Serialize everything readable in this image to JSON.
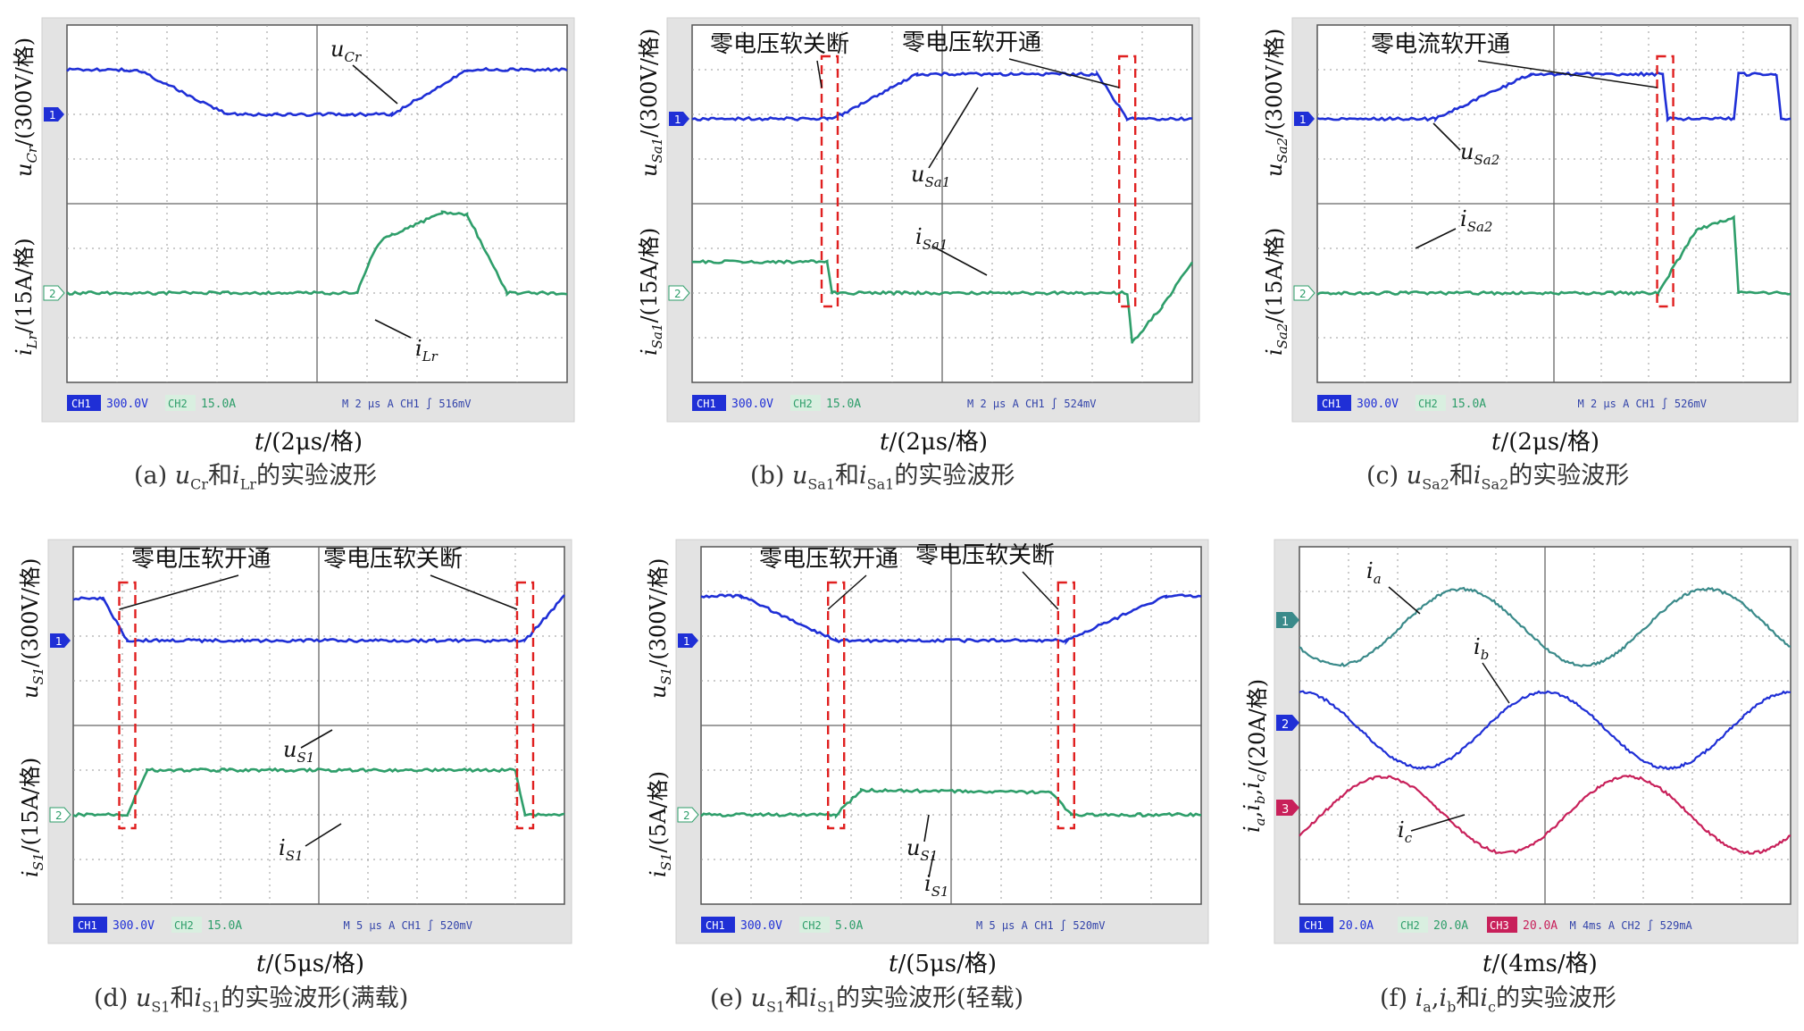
{
  "figure": {
    "captions": [
      {
        "id": "a",
        "label": "(a)",
        "v1": "u",
        "s1": "Cr",
        "mid": "和",
        "v2": "i",
        "s2": "Lr",
        "tail": "的实验波形"
      },
      {
        "id": "b",
        "label": "(b)",
        "v1": "u",
        "s1": "Sa1",
        "mid": "和",
        "v2": "i",
        "s2": "Sa1",
        "tail": "的实验波形"
      },
      {
        "id": "c",
        "label": "(c)",
        "v1": "u",
        "s1": "Sa2",
        "mid": "和",
        "v2": "i",
        "s2": "Sa2",
        "tail": "的实验波形"
      },
      {
        "id": "d",
        "label": "(d)",
        "v1": "u",
        "s1": "S1",
        "mid": "和",
        "v2": "i",
        "s2": "S1",
        "tail": "的实验波形(满载)"
      },
      {
        "id": "e",
        "label": "(e)",
        "v1": "u",
        "s1": "S1",
        "mid": "和",
        "v2": "i",
        "s2": "S1",
        "tail": "的实验波形(轻载)"
      },
      {
        "id": "f",
        "label": "(f)",
        "v1": "i",
        "s1": "a",
        "mid": ",",
        "v2": "i",
        "s2": "b",
        "tail": "和",
        "v3": "i",
        "s3": "c",
        "tail2": "的实验波形"
      }
    ]
  },
  "colors": {
    "ch1": "#1f2fd6",
    "ch2": "#2e9e6a",
    "ch1_panel_f": "#3a8a8a",
    "ch3": "#c8205a",
    "grid": "#9a9a9a",
    "frame": "#cfcfcf",
    "annotation": "#e02020",
    "text": "#111111"
  },
  "chart_data": [
    {
      "id": "a",
      "type": "line",
      "xlabel": "t/(2μs/格)",
      "ylabels": [
        {
          "text": "u",
          "sub": "Cr",
          "unit": "/(300V/格)"
        },
        {
          "text": "i",
          "sub": "Lr",
          "unit": "/(15A/格)"
        }
      ],
      "series": [
        {
          "name": "u_Cr",
          "channel": "CH1",
          "x": [
            0,
            1.2,
            1.5,
            3.2,
            4.2,
            5.6,
            6.5,
            8,
            10
          ],
          "y": [
            1.0,
            1.0,
            0.95,
            0.0,
            0.0,
            0.0,
            0.0,
            1.0,
            1.0
          ]
        },
        {
          "name": "i_Lr",
          "channel": "CH2",
          "x": [
            0,
            5.8,
            6.5,
            7.5,
            8.0,
            8.8,
            10
          ],
          "y": [
            0,
            0,
            1.3,
            1.8,
            1.75,
            0,
            0
          ]
        }
      ],
      "trace_labels": [
        {
          "v": "u",
          "s": "Cr"
        },
        {
          "v": "i",
          "s": "Lr"
        }
      ],
      "annotations": [],
      "status": {
        "ch1": "300.0V",
        "ch2": "15.0A",
        "m": "2 μs",
        "trig_ch": "CH1",
        "trig_level": "516mV"
      }
    },
    {
      "id": "b",
      "type": "line",
      "xlabel": "t/(2μs/格)",
      "ylabels": [
        {
          "text": "u",
          "sub": "Sa1",
          "unit": "/(300V/格)"
        },
        {
          "text": "i",
          "sub": "Sa1",
          "unit": "/(15A/格)"
        }
      ],
      "series": [
        {
          "name": "u_Sa1",
          "channel": "CH1",
          "x": [
            0,
            2.7,
            3.0,
            4.5,
            6,
            8.1,
            8.7,
            10
          ],
          "y": [
            0,
            0,
            0.1,
            1.0,
            1.0,
            1.0,
            0,
            0
          ]
        },
        {
          "name": "i_Sa1",
          "channel": "CH2",
          "x": [
            0,
            2.7,
            2.8,
            8.7,
            8.8,
            9.4,
            10
          ],
          "y": [
            0.7,
            0.7,
            0,
            0,
            -1.1,
            -0.3,
            0.7
          ]
        }
      ],
      "trace_labels": [
        {
          "v": "u",
          "s": "Sa1"
        },
        {
          "v": "i",
          "s": "Sa1"
        }
      ],
      "annotations": [
        "零电压软关断",
        "零电压软开通"
      ],
      "status": {
        "ch1": "300.0V",
        "ch2": "15.0A",
        "m": "2 μs",
        "trig_ch": "CH1",
        "trig_level": "524mV"
      }
    },
    {
      "id": "c",
      "type": "line",
      "xlabel": "t/(2μs/格)",
      "ylabels": [
        {
          "text": "u",
          "sub": "Sa2",
          "unit": "/(300V/格)"
        },
        {
          "text": "i",
          "sub": "Sa2",
          "unit": "/(15A/格)"
        }
      ],
      "series": [
        {
          "name": "u_Sa2",
          "channel": "CH1",
          "x": [
            0,
            2.5,
            4.5,
            7.3,
            7.4,
            8.8,
            8.9,
            9.7,
            9.8,
            10
          ],
          "y": [
            0,
            0,
            1.0,
            1.0,
            0,
            0,
            1.0,
            1.0,
            0,
            0
          ]
        },
        {
          "name": "i_Sa2",
          "channel": "CH2",
          "x": [
            0,
            7.2,
            8.0,
            8.8,
            8.9,
            10
          ],
          "y": [
            0,
            0,
            1.4,
            1.7,
            0,
            0
          ]
        }
      ],
      "trace_labels": [
        {
          "v": "u",
          "s": "Sa2"
        },
        {
          "v": "i",
          "s": "Sa2"
        }
      ],
      "annotations": [
        "零电流软开通"
      ],
      "status": {
        "ch1": "300.0V",
        "ch2": "15.0A",
        "m": "2 μs",
        "trig_ch": "CH1",
        "trig_level": "526mV"
      }
    },
    {
      "id": "d",
      "type": "line",
      "xlabel": "t/(5μs/格)",
      "ylabels": [
        {
          "text": "u",
          "sub": "S1",
          "unit": "/(300V/格)"
        },
        {
          "text": "i",
          "sub": "S1",
          "unit": "/(15A/格)"
        }
      ],
      "series": [
        {
          "name": "u_S1",
          "channel": "CH1",
          "x": [
            0,
            0.6,
            1.1,
            9.2,
            10
          ],
          "y": [
            0.95,
            0.95,
            0,
            0,
            1.0
          ]
        },
        {
          "name": "i_S1",
          "channel": "CH2",
          "x": [
            0,
            1.1,
            1.5,
            9.0,
            9.2,
            10
          ],
          "y": [
            0,
            0,
            1.0,
            1.0,
            0,
            0
          ]
        }
      ],
      "trace_labels": [
        {
          "v": "u",
          "s": "S1"
        },
        {
          "v": "i",
          "s": "S1"
        }
      ],
      "annotations": [
        "零电压软开通",
        "零电压软关断"
      ],
      "status": {
        "ch1": "300.0V",
        "ch2": "15.0A",
        "m": "5 μs",
        "trig_ch": "CH1",
        "trig_level": "520mV"
      }
    },
    {
      "id": "e",
      "type": "line",
      "xlabel": "t/(5μs/格)",
      "ylabels": [
        {
          "text": "u",
          "sub": "S1",
          "unit": "/(300V/格)"
        },
        {
          "text": "i",
          "sub": "S1",
          "unit": "/(5A/格)"
        }
      ],
      "series": [
        {
          "name": "u_S1",
          "channel": "CH1",
          "x": [
            0,
            0.8,
            2.7,
            7.3,
            9.3,
            10
          ],
          "y": [
            1.0,
            1.0,
            0,
            0,
            1.0,
            1.0
          ]
        },
        {
          "name": "i_S1",
          "channel": "CH2",
          "x": [
            0,
            2.7,
            3.2,
            7.0,
            7.4,
            10
          ],
          "y": [
            0,
            0,
            0.55,
            0.5,
            0,
            0
          ]
        }
      ],
      "trace_labels": [
        {
          "v": "u",
          "s": "S1"
        },
        {
          "v": "i",
          "s": "S1"
        }
      ],
      "annotations": [
        "零电压软开通",
        "零电压软关断"
      ],
      "status": {
        "ch1": "300.0V",
        "ch2": "5.0A",
        "m": "5 μs",
        "trig_ch": "CH1",
        "trig_level": "520mV"
      }
    },
    {
      "id": "f",
      "type": "line",
      "xlabel": "t/(4ms/格)",
      "ylabels": [
        {
          "text": "i",
          "sub": "a",
          "text2": "i",
          "sub2": "b",
          "text3": "i",
          "sub3": "c",
          "unit": "/(20A/格)"
        }
      ],
      "series": [
        {
          "name": "i_a",
          "channel": "CH1",
          "period_div": 5.0,
          "phase_div": 3.3,
          "amplitude_div": 0.85,
          "offset_div": 1.8
        },
        {
          "name": "i_b",
          "channel": "CH2",
          "period_div": 5.0,
          "phase_div": 5.0,
          "amplitude_div": 0.85,
          "offset_div": 4.1
        },
        {
          "name": "i_c",
          "channel": "CH3",
          "period_div": 5.0,
          "phase_div": 1.7,
          "amplitude_div": 0.85,
          "offset_div": 6.0
        }
      ],
      "trace_labels": [
        {
          "v": "i",
          "s": "a"
        },
        {
          "v": "i",
          "s": "b"
        },
        {
          "v": "i",
          "s": "c"
        }
      ],
      "status": {
        "ch1": "20.0A",
        "ch2": "20.0A",
        "ch3": "20.0A",
        "m": "4ms",
        "trig_ch": "CH2",
        "trig_level": "529mA"
      }
    }
  ]
}
